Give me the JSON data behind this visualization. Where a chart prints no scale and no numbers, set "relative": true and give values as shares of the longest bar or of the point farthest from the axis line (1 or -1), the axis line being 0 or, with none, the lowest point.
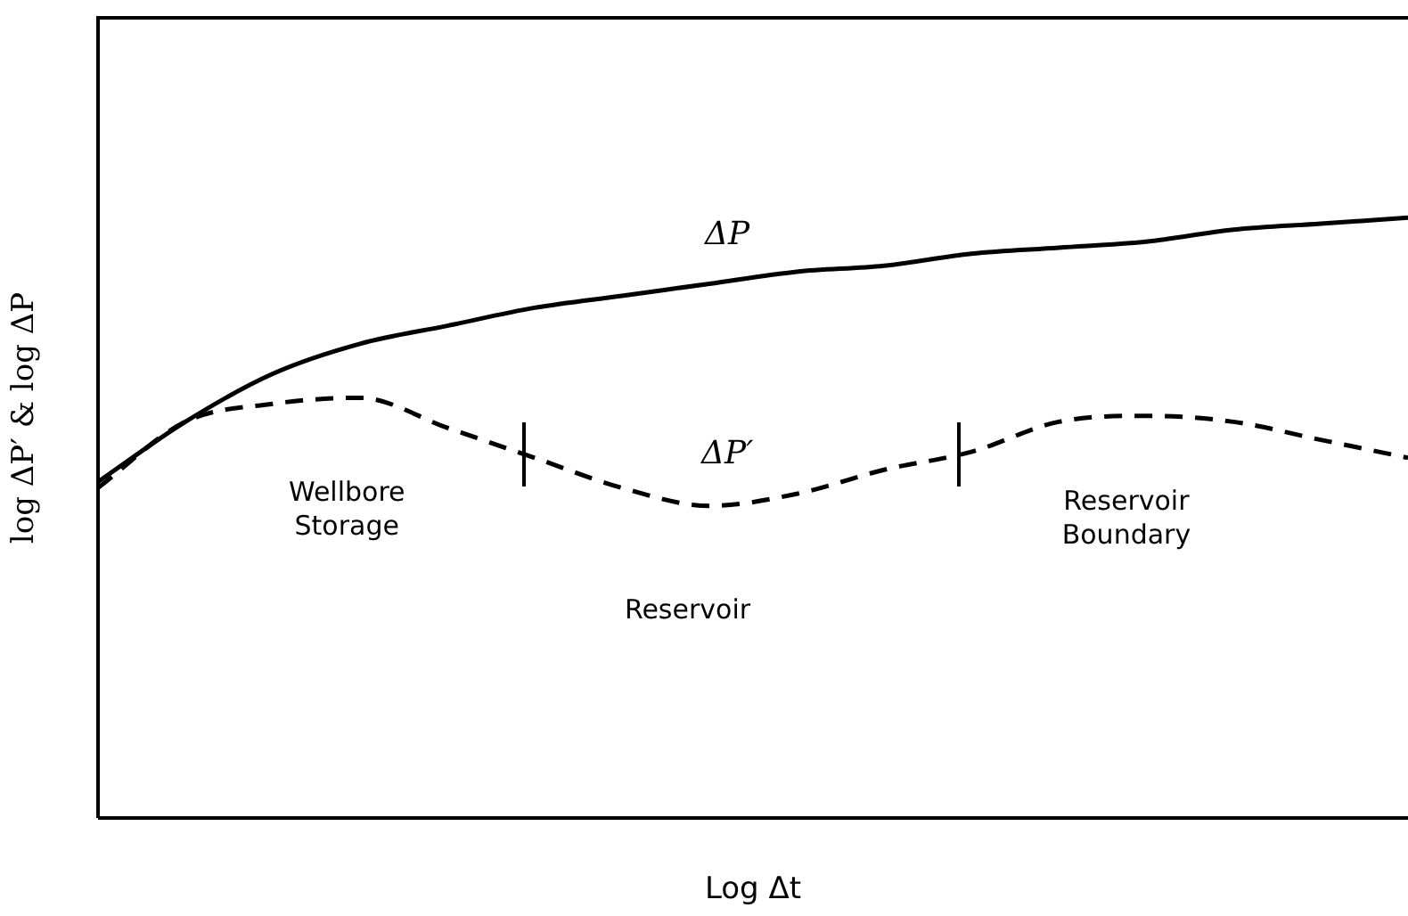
{
  "chart_data": {
    "type": "line",
    "relative": true,
    "xlabel": "Log Δt",
    "ylabel": "log ΔP′ & log ΔP",
    "categories": [
      null,
      null,
      null,
      null,
      null,
      null,
      null,
      null,
      null,
      null,
      null,
      null,
      null,
      null,
      null,
      null
    ],
    "series": [
      {
        "name": "ΔP",
        "color": "#000000",
        "line_style": "solid",
        "values": [
          0.56,
          0.66,
          0.74,
          0.79,
          0.82,
          0.85,
          0.87,
          0.89,
          0.91,
          0.92,
          0.94,
          0.95,
          0.96,
          0.98,
          0.99,
          1
        ]
      },
      {
        "name": "ΔP′",
        "color": "#000000",
        "line_style": "dashed",
        "values": [
          0.55,
          0.66,
          0.69,
          0.7,
          0.65,
          0.6,
          0.55,
          0.52,
          0.54,
          0.58,
          0.61,
          0.66,
          0.67,
          0.66,
          0.63,
          0.6
        ]
      }
    ],
    "annotations": [
      "Wellbore Storage",
      "Reservoir",
      "Reservoir Boundary"
    ],
    "legend": false,
    "grid": false,
    "marker": "none"
  }
}
